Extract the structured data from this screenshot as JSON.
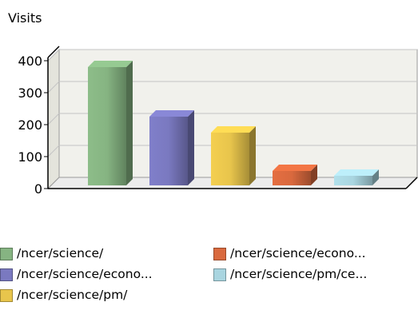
{
  "chart_data": {
    "type": "bar",
    "ylabel": "Visits",
    "ylim": [
      0,
      400
    ],
    "yticks": [
      0,
      100,
      200,
      300,
      400
    ],
    "grid": true,
    "legend_position": "bottom",
    "categories": [
      "/ncer/science/",
      "/ncer/science/econo...",
      "/ncer/science/pm/",
      "/ncer/science/econo...",
      "/ncer/science/pm/ce..."
    ],
    "values": [
      370,
      215,
      165,
      45,
      30
    ],
    "colors": [
      "#86b482",
      "#7a79c0",
      "#e8c54c",
      "#d9693e",
      "#a9d5e0"
    ]
  },
  "legend": {
    "items": [
      {
        "label": "/ncer/science/",
        "color": "#86b482"
      },
      {
        "label": "/ncer/science/econo...",
        "color": "#7a79c0"
      },
      {
        "label": "/ncer/science/pm/",
        "color": "#e8c54c"
      },
      {
        "label": "/ncer/science/econo...",
        "color": "#d9693e"
      },
      {
        "label": "/ncer/science/pm/ce...",
        "color": "#a9d5e0"
      }
    ]
  }
}
